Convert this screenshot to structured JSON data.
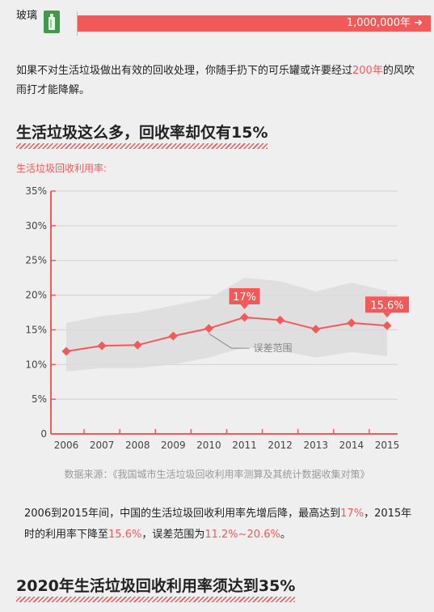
{
  "header": {
    "material_label": "玻璃",
    "bar_text": "1,000,000年 ➜",
    "icon": "glass-bottle-icon"
  },
  "intro": {
    "text_before": "如果不对生活垃圾做出有效的回收处理，你随手扔下的可乐罐或许要经过",
    "highlight": "200年",
    "text_after": "的风吹雨打才能降解。"
  },
  "section1_title": "生活垃圾这么多，回收率却仅有15%",
  "section2_title": "2020年生活垃圾回收利用率须达到35%",
  "source_text": "数据来源：《我国城市生活垃圾回收利用率测算及其统计数据收集对策》",
  "summary": {
    "p1": "2006到2015年间，中国的生活垃圾回收利用率先增后降，最高达到",
    "h1": "17%",
    "p2": "，2015年时的利用率下降至",
    "h2": "15.6%",
    "p3": "，误差范围为",
    "h3": "11.2%~20.6%",
    "p4": "。"
  },
  "colors": {
    "accent": "#f25a5a",
    "band": "#dcdcdc",
    "grid": "#d0d0d0"
  },
  "chart_data": {
    "type": "line",
    "ylabel": "生活垃圾回收利用率:",
    "x": [
      "2006",
      "2007",
      "2008",
      "2009",
      "2010",
      "2011",
      "2012",
      "2013",
      "2014",
      "2015"
    ],
    "series": [
      {
        "values": [
          11.9,
          12.7,
          12.8,
          14.1,
          15.2,
          16.8,
          16.4,
          15.1,
          16.0,
          15.6
        ]
      }
    ],
    "error_band": {
      "label": "误差范围",
      "upper": [
        16.0,
        17.0,
        17.5,
        18.5,
        19.5,
        22.5,
        22.0,
        20.5,
        21.8,
        20.6
      ],
      "lower": [
        9.0,
        9.5,
        9.5,
        10.0,
        11.0,
        12.5,
        12.0,
        11.0,
        11.8,
        11.2
      ]
    },
    "callouts": [
      {
        "x": "2011",
        "label": "17%"
      },
      {
        "x": "2015",
        "label": "15.6%"
      }
    ],
    "yticks": [
      "0",
      "5%",
      "10%",
      "15%",
      "20%",
      "25%",
      "30%",
      "35%"
    ],
    "ylim": [
      0,
      35
    ],
    "grid": true
  }
}
